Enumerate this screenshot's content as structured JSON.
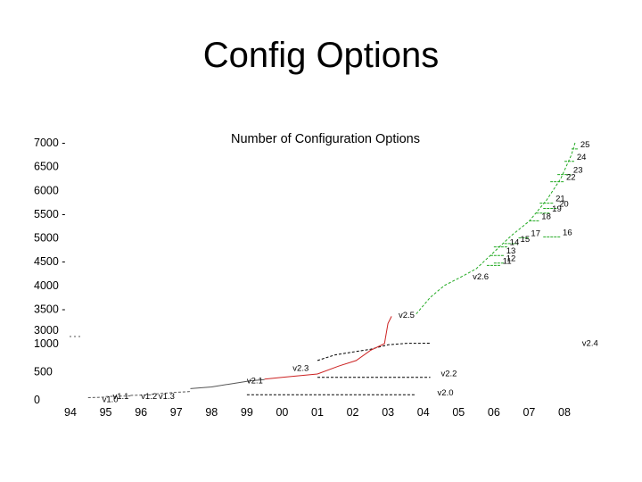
{
  "slide": {
    "title": "Config Options"
  },
  "chart_data": {
    "type": "line",
    "title": "Number of Configuration Options",
    "xlabel": "",
    "ylabel": "",
    "y_axis_break": true,
    "x_ticks": [
      {
        "v": 1994,
        "label": "94"
      },
      {
        "v": 1995,
        "label": "95"
      },
      {
        "v": 1996,
        "label": "96"
      },
      {
        "v": 1997,
        "label": "97"
      },
      {
        "v": 1998,
        "label": "98"
      },
      {
        "v": 1999,
        "label": "99"
      },
      {
        "v": 2000,
        "label": "00"
      },
      {
        "v": 2001,
        "label": "01"
      },
      {
        "v": 2002,
        "label": "02"
      },
      {
        "v": 2003,
        "label": "03"
      },
      {
        "v": 2004,
        "label": "04"
      },
      {
        "v": 2005,
        "label": "05"
      },
      {
        "v": 2006,
        "label": "06"
      },
      {
        "v": 2007,
        "label": "07"
      },
      {
        "v": 2008,
        "label": "08"
      }
    ],
    "y_ticks_lower": [
      {
        "v": 0,
        "label": "0"
      },
      {
        "v": 500,
        "label": "500"
      },
      {
        "v": 1000,
        "label": "1000"
      }
    ],
    "y_ticks_upper": [
      {
        "v": 3000,
        "label": "3000"
      },
      {
        "v": 3500,
        "label": "3500 -"
      },
      {
        "v": 4000,
        "label": "4000"
      },
      {
        "v": 4500,
        "label": "4500 -"
      },
      {
        "v": 5000,
        "label": "5000"
      },
      {
        "v": 5500,
        "label": "5500 -"
      },
      {
        "v": 6000,
        "label": "6000"
      },
      {
        "v": 6500,
        "label": "6500"
      },
      {
        "v": 7000,
        "label": "7000 -"
      }
    ],
    "colors": {
      "early": "#555555",
      "v2_5": "#cc2222",
      "v2_6": "#22aa22",
      "other": "#000000"
    },
    "series": [
      {
        "name": "v1.0",
        "color_key": "early",
        "style": "dashed",
        "points": [
          [
            1994.5,
            40
          ],
          [
            1995.0,
            50
          ]
        ]
      },
      {
        "name": "v1.1",
        "color_key": "early",
        "style": "dashed",
        "points": [
          [
            1995.0,
            60
          ],
          [
            1995.7,
            70
          ]
        ]
      },
      {
        "name": "v1.2",
        "color_key": "early",
        "style": "dashed",
        "points": [
          [
            1995.7,
            80
          ],
          [
            1996.3,
            90
          ]
        ]
      },
      {
        "name": "v1.3",
        "color_key": "early",
        "style": "dashed",
        "points": [
          [
            1996.3,
            100
          ],
          [
            1996.9,
            130
          ],
          [
            1997.4,
            150
          ]
        ]
      },
      {
        "name": "v2.1",
        "color_key": "early",
        "style": "solid",
        "points": [
          [
            1997.4,
            200
          ],
          [
            1998.0,
            230
          ],
          [
            1998.6,
            290
          ],
          [
            1999.1,
            340
          ],
          [
            1999.5,
            360
          ]
        ]
      },
      {
        "name": "v2.2",
        "color_key": "other",
        "style": "dashed",
        "points": [
          [
            2001.0,
            400
          ],
          [
            2002.0,
            400
          ],
          [
            2003.0,
            400
          ],
          [
            2004.2,
            400
          ]
        ]
      },
      {
        "name": "v2.0",
        "color_key": "other",
        "style": "dashed",
        "points": [
          [
            1999.0,
            90
          ],
          [
            2000.5,
            90
          ],
          [
            2002.0,
            90
          ],
          [
            2003.8,
            90
          ]
        ]
      },
      {
        "name": "v2.3",
        "color_key": "v2_5",
        "style": "solid",
        "points": [
          [
            1999.5,
            370
          ],
          [
            2000.0,
            400
          ],
          [
            2000.5,
            430
          ],
          [
            2001.0,
            460
          ]
        ]
      },
      {
        "name": "v2.4",
        "color_key": "other",
        "style": "dashed",
        "points": [
          [
            2001.0,
            700
          ],
          [
            2001.5,
            800
          ],
          [
            2002.0,
            850
          ],
          [
            2002.5,
            900
          ],
          [
            2003.0,
            980
          ],
          [
            2003.5,
            1050
          ],
          [
            2004.2,
            1080
          ]
        ]
      },
      {
        "name": "v2.5",
        "color_key": "v2_5",
        "style": "solid",
        "points": [
          [
            2001.0,
            460
          ],
          [
            2001.6,
            600
          ],
          [
            2002.1,
            700
          ],
          [
            2002.5,
            880
          ],
          [
            2002.9,
            1000
          ],
          [
            2003.0,
            3200
          ],
          [
            2003.1,
            3350
          ]
        ]
      },
      {
        "name": "v2.6",
        "color_key": "v2_6",
        "style": "dashed",
        "points": [
          [
            2003.8,
            3400
          ],
          [
            2004.2,
            3750
          ],
          [
            2004.6,
            4000
          ],
          [
            2005.0,
            4150
          ],
          [
            2005.5,
            4350
          ],
          [
            2006.0,
            4700
          ],
          [
            2006.5,
            5050
          ],
          [
            2007.0,
            5350
          ],
          [
            2007.5,
            5800
          ],
          [
            2007.9,
            6250
          ],
          [
            2008.2,
            6750
          ],
          [
            2008.3,
            7000
          ]
        ]
      }
    ],
    "release_steps": [
      {
        "label": "11",
        "x1": 2005.8,
        "x2": 2006.2,
        "y": 4420
      },
      {
        "label": "12",
        "x1": 2006.0,
        "x2": 2006.3,
        "y": 4470
      },
      {
        "label": "13",
        "x1": 2005.9,
        "x2": 2006.3,
        "y": 4630
      },
      {
        "label": "14",
        "x1": 2006.0,
        "x2": 2006.4,
        "y": 4810
      },
      {
        "label": "15",
        "x1": 2006.3,
        "x2": 2006.7,
        "y": 4880
      },
      {
        "label": "16",
        "x1": 2007.4,
        "x2": 2007.9,
        "y": 5020
      },
      {
        "label": "17",
        "x1": 2006.7,
        "x2": 2007.0,
        "y": 5000
      },
      {
        "label": "18",
        "x1": 2007.0,
        "x2": 2007.3,
        "y": 5360
      },
      {
        "label": "19",
        "x1": 2007.2,
        "x2": 2007.6,
        "y": 5520
      },
      {
        "label": "20",
        "x1": 2007.4,
        "x2": 2007.8,
        "y": 5620
      },
      {
        "label": "21",
        "x1": 2007.3,
        "x2": 2007.7,
        "y": 5730
      },
      {
        "label": "22",
        "x1": 2007.6,
        "x2": 2008.0,
        "y": 6180
      },
      {
        "label": "23",
        "x1": 2007.8,
        "x2": 2008.2,
        "y": 6330
      },
      {
        "label": "24",
        "x1": 2008.0,
        "x2": 2008.3,
        "y": 6610
      },
      {
        "label": "25",
        "x1": 2008.2,
        "x2": 2008.4,
        "y": 6870
      }
    ],
    "version_labels": [
      {
        "text": "v1.0",
        "x": 1994.9,
        "y": 10
      },
      {
        "text": "v1.1",
        "x": 1995.2,
        "y": 60
      },
      {
        "text": "v1.2",
        "x": 1996.0,
        "y": 60
      },
      {
        "text": "v1.3",
        "x": 1996.5,
        "y": 60
      },
      {
        "text": "v2.1",
        "x": 1999.0,
        "y": 340
      },
      {
        "text": "v2.3",
        "x": 2000.3,
        "y": 560
      },
      {
        "text": "v2.2",
        "x": 2004.5,
        "y": 470
      },
      {
        "text": "v2.0",
        "x": 2004.4,
        "y": 130
      },
      {
        "text": "v2.4",
        "x": 2008.5,
        "y": 1080
      },
      {
        "text": "v2.5",
        "x": 2003.3,
        "y": 3380
      },
      {
        "text": "v2.6",
        "x": 2005.4,
        "y": 4180
      }
    ]
  }
}
